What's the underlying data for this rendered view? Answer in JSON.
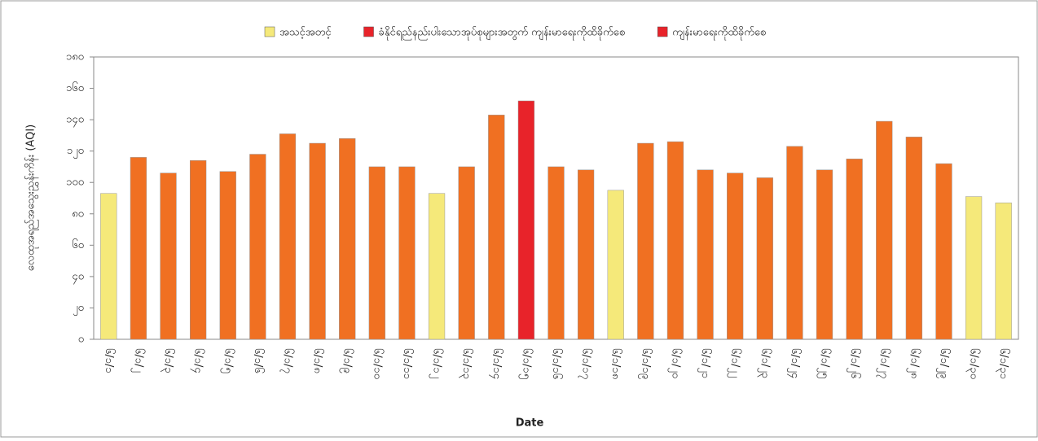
{
  "chart_data": {
    "type": "bar",
    "y_label": "လေထုအရည်အသွေးညွှန်းကိန်း (AQI)",
    "x_label": "Date",
    "legend": [
      {
        "name": "အသင့်အတင့်",
        "color": "#f5e97a"
      },
      {
        "name": "ခံနိုင်ရည်နည်းပါးသောအုပ်စုများအတွက် ကျန်းမာရေးကိုထိခိုက်စေ",
        "color": "#e8232a"
      },
      {
        "name": "ကျန်းမာရေးကိုထိခိုက်စေ",
        "color": "#e8232a"
      }
    ],
    "categories": [
      "၆/၁/၁",
      "၆/၁/၂",
      "၆/၁/၃",
      "၆/၁/၄",
      "၆/၁/၅",
      "၆/၁/၆",
      "၆/၁/၇",
      "၆/၁/၈",
      "၆/၁/၉",
      "၆/၁/၁၀",
      "၆/၁/၁၁",
      "၆/၁/၁၂",
      "၆/၁/၁၃",
      "၆/၁/၁၄",
      "၆/၁/၁၅",
      "၆/၁/၁၆",
      "၆/၁/၁၇",
      "၆/၁/၁၈",
      "၆/၁/၁၉",
      "၆/၁/၂၀",
      "၆/၁/၂၁",
      "၆/၁/၂၂",
      "၆/၁/၂၃",
      "၆/၁/၂၄",
      "၆/၁/၂၅",
      "၆/၁/၂၆",
      "၆/၁/၂၇",
      "၆/၁/၂၈",
      "၆/၁/၂၉",
      "၆/၁/၃၀",
      "၆/၁/၃၁"
    ],
    "values": [
      93,
      116,
      106,
      114,
      107,
      118,
      131,
      125,
      128,
      110,
      110,
      93,
      110,
      143,
      152,
      110,
      108,
      95,
      125,
      126,
      108,
      106,
      103,
      123,
      108,
      115,
      139,
      129,
      112,
      91,
      87
    ],
    "colors": [
      "#f5e97a",
      "#f07022",
      "#f07022",
      "#f07022",
      "#f07022",
      "#f07022",
      "#f07022",
      "#f07022",
      "#f07022",
      "#f07022",
      "#f07022",
      "#f5e97a",
      "#f07022",
      "#f07022",
      "#e8232a",
      "#f07022",
      "#f07022",
      "#f5e97a",
      "#f07022",
      "#f07022",
      "#f07022",
      "#f07022",
      "#f07022",
      "#f07022",
      "#f07022",
      "#f07022",
      "#f07022",
      "#f07022",
      "#f07022",
      "#f5e97a",
      "#f5e97a"
    ],
    "ylim": [
      0,
      180
    ],
    "yticks": [
      {
        "value": 0,
        "label": "၀"
      },
      {
        "value": 20,
        "label": "၂၀"
      },
      {
        "value": 40,
        "label": "၄၀"
      },
      {
        "value": 60,
        "label": "၆၀"
      },
      {
        "value": 80,
        "label": "၈၀"
      },
      {
        "value": 100,
        "label": "၁၀၀"
      },
      {
        "value": 120,
        "label": "၁၂၀"
      },
      {
        "value": 140,
        "label": "၁၄၀"
      },
      {
        "value": 160,
        "label": "၁၆၀"
      },
      {
        "value": 180,
        "label": "၁၈၀"
      }
    ]
  }
}
